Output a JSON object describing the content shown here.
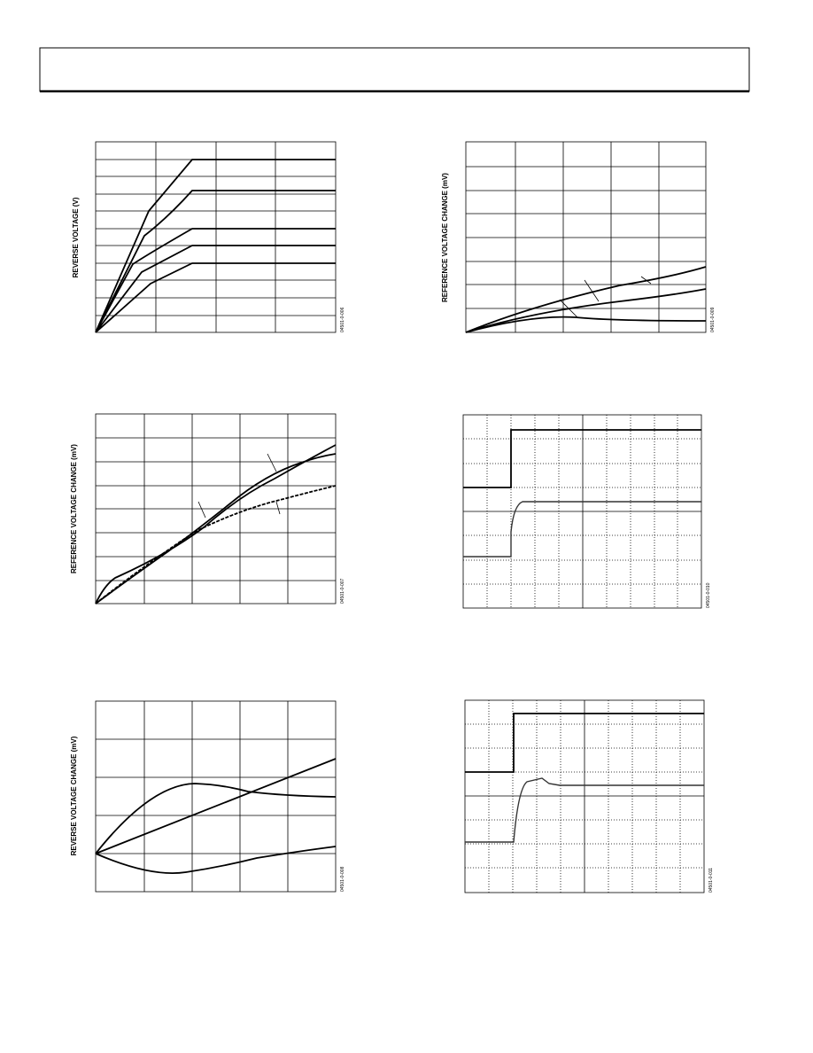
{
  "figures": [
    {
      "y_label": "REVERSE VOLTAGE (V)",
      "code": "04501-0-006"
    },
    {
      "y_label": "REFERENCE VOLTAGE CHANGE (mV)",
      "code": "04501-0-009"
    },
    {
      "y_label": "REFERENCE VOLTAGE CHANGE (mV)",
      "code": "04501-0-007"
    },
    {
      "code": "04501-0-010"
    },
    {
      "y_label": "REVERSE VOLTAGE CHANGE (mV)",
      "code": "04501-0-008"
    },
    {
      "code": "04501-0-011"
    }
  ]
}
